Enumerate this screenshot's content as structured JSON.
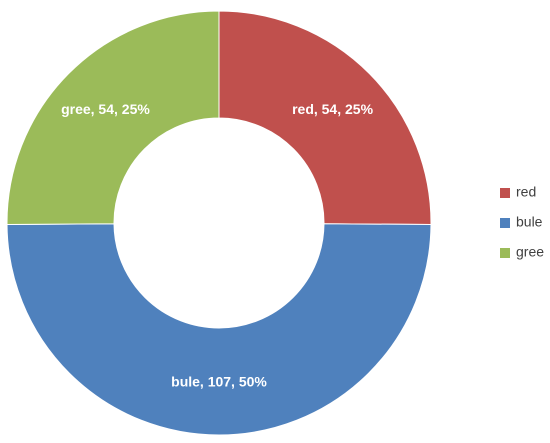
{
  "chart_data": {
    "type": "pie",
    "categories": [
      "red",
      "bule",
      "gree"
    ],
    "values": [
      54,
      107,
      54
    ],
    "value_labels": [
      "red, 54, 25%",
      "bule, 107, 50%",
      "gree, 54, 25%"
    ],
    "colors": [
      "#c0504d",
      "#4f81bd",
      "#9bbb59"
    ],
    "legend": "right"
  }
}
